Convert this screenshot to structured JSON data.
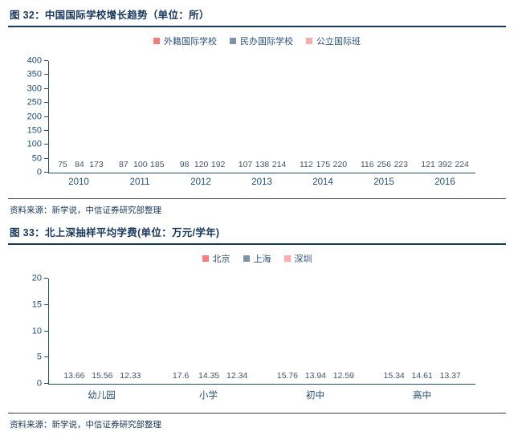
{
  "figures": [
    {
      "title": "图 32：中国国际学校增长趋势（单位：所）",
      "source": "资料来源：新学说，中信证券研究部整理"
    },
    {
      "title": "图 33：北上深抽样平均学费(单位：万元/学年)",
      "source": "资料来源：新学说，中信证券研究部整理"
    }
  ],
  "colors": {
    "title_navy": "#17375D",
    "axis_blue": "#1F4E79",
    "data_label": "#44546A",
    "series_red": "#F97B7B",
    "series_slate": "#7D92AB",
    "series_pink": "#FBADAD"
  },
  "chart_data": [
    {
      "type": "bar",
      "title": "图 32：中国国际学校增长趋势（单位：所）",
      "categories": [
        "2010",
        "2011",
        "2012",
        "2013",
        "2014",
        "2015",
        "2016"
      ],
      "series": [
        {
          "name": "外籍国际学校",
          "color": "#F97B7B",
          "values": [
            75,
            87,
            98,
            107,
            112,
            116,
            121
          ]
        },
        {
          "name": "民办国际学校",
          "color": "#7D92AB",
          "values": [
            84,
            100,
            120,
            138,
            175,
            256,
            392
          ]
        },
        {
          "name": "公立国际班",
          "color": "#FBADAD",
          "values": [
            173,
            185,
            192,
            214,
            220,
            223,
            224
          ]
        }
      ],
      "xlabel": "",
      "ylabel": "",
      "ylim": [
        0,
        400
      ],
      "ytick_step": 50,
      "legend_position": "top",
      "grid": false,
      "data_labels": true
    },
    {
      "type": "bar",
      "title": "图 33：北上深抽样平均学费(单位：万元/学年)",
      "categories": [
        "幼儿园",
        "小学",
        "初中",
        "高中"
      ],
      "series": [
        {
          "name": "北京",
          "color": "#F97B7B",
          "values": [
            13.66,
            17.6,
            15.76,
            15.34
          ]
        },
        {
          "name": "上海",
          "color": "#7D92AB",
          "values": [
            15.56,
            14.35,
            13.94,
            14.61
          ]
        },
        {
          "name": "深圳",
          "color": "#FBADAD",
          "values": [
            12.33,
            12.34,
            12.59,
            13.37
          ]
        }
      ],
      "xlabel": "",
      "ylabel": "",
      "ylim": [
        0,
        20
      ],
      "ytick_step": 5,
      "legend_position": "top",
      "grid": false,
      "data_labels": true
    }
  ]
}
